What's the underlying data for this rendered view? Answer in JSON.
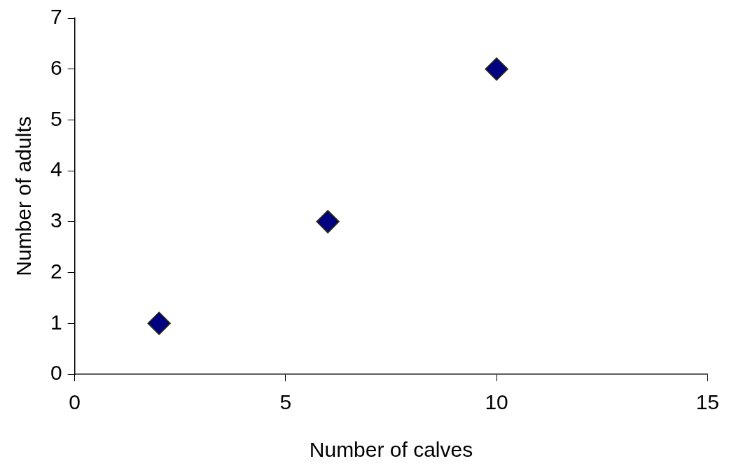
{
  "chart_data": {
    "type": "scatter",
    "xlabel": "Number of calves",
    "ylabel": "Number of adults",
    "x": [
      2,
      6,
      10
    ],
    "series": [
      {
        "color": "#000080",
        "values": [
          1,
          3,
          6
        ]
      }
    ],
    "xlim": [
      0,
      15
    ],
    "xticks": [
      0,
      5,
      10,
      15
    ],
    "ylim": [
      0,
      7
    ],
    "yticks": [
      0,
      1,
      2,
      3,
      4,
      5,
      6,
      7
    ],
    "marker": "diamond",
    "grid": false,
    "legend": false
  }
}
